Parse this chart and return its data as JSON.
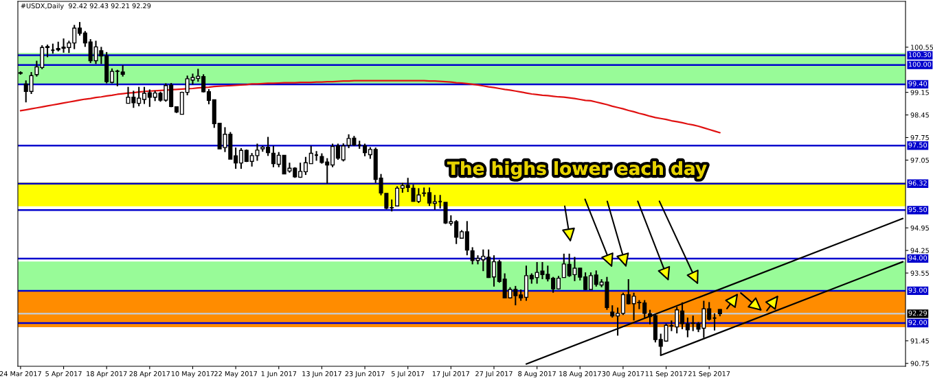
{
  "chart_data": {
    "type": "candlestick",
    "title": "#USDX,Daily  92.42 92.43 92.21 92.29",
    "color": "#000000",
    "categories": [
      "24 Mar 2017",
      null,
      null,
      null,
      null,
      null,
      null,
      null,
      "5 Apr 2017",
      null,
      null,
      null,
      null,
      null,
      null,
      null,
      "18 Apr 2017",
      null,
      null,
      null,
      null,
      null,
      null,
      null,
      "28 Apr 2017",
      null,
      null,
      null,
      null,
      null,
      null,
      null,
      "10 May 2017",
      null,
      null,
      null,
      null,
      null,
      null,
      null,
      "22 May 2017",
      null,
      null,
      null,
      null,
      null,
      null,
      null,
      "1 Jun 2017",
      null,
      null,
      null,
      null,
      null,
      null,
      null,
      "13 Jun 2017",
      null,
      null,
      null,
      null,
      null,
      null,
      null,
      "23 Jun 2017",
      null,
      null,
      null,
      null,
      null,
      null,
      null,
      "5 Jul 2017",
      null,
      null,
      null,
      null,
      null,
      null,
      null,
      "17 Jul 2017",
      null,
      null,
      null,
      null,
      null,
      null,
      null,
      "27 Jul 2017",
      null,
      null,
      null,
      null,
      null,
      null,
      null,
      "8 Aug 2017",
      null,
      null,
      null,
      null,
      null,
      null,
      null,
      "18 Aug 2017",
      null,
      null,
      null,
      null,
      null,
      null,
      null,
      "30 Aug 2017",
      null,
      null,
      null,
      null,
      null,
      null,
      null,
      "11 Sep 2017",
      null,
      null,
      null,
      null,
      null,
      null,
      null,
      "21 Sep 2017",
      null,
      null,
      null,
      null,
      null,
      null,
      null,
      null,
      null,
      null,
      null,
      null,
      null,
      null,
      null,
      null,
      null,
      null,
      null,
      null,
      null,
      null,
      null,
      null,
      null,
      null,
      null,
      null,
      null,
      null,
      null,
      null,
      null,
      null,
      null,
      null
    ],
    "ohlc": [
      [
        99.76,
        99.8,
        99.7,
        99.74
      ],
      [
        99.41,
        99.52,
        98.84,
        99.18
      ],
      [
        99.18,
        99.78,
        99.1,
        99.67
      ],
      [
        99.7,
        100.13,
        99.64,
        99.94
      ],
      [
        99.92,
        100.61,
        99.87,
        100.54
      ],
      [
        100.57,
        100.63,
        100.24,
        100.54
      ],
      [
        100.45,
        100.66,
        100.35,
        100.46
      ],
      [
        100.51,
        100.72,
        100.42,
        100.47
      ],
      [
        100.55,
        100.82,
        100.38,
        100.52
      ],
      [
        100.54,
        100.75,
        100.37,
        100.68
      ],
      [
        100.68,
        101.24,
        100.49,
        101.14
      ],
      [
        101.14,
        101.33,
        100.91,
        100.98
      ],
      [
        100.99,
        101.05,
        100.56,
        100.68
      ],
      [
        100.71,
        100.8,
        100.06,
        100.13
      ],
      [
        100.13,
        100.75,
        100.03,
        100.56
      ],
      [
        100.44,
        100.56,
        100.03,
        100.28
      ],
      [
        100.28,
        100.4,
        99.43,
        99.48
      ],
      [
        99.46,
        99.89,
        99.43,
        99.8
      ],
      [
        99.8,
        99.85,
        99.34,
        99.81
      ],
      [
        99.78,
        99.99,
        99.64,
        99.71
      ],
      [
        98.81,
        99.32,
        98.81,
        99.0
      ],
      [
        99.0,
        99.2,
        98.67,
        98.83
      ],
      [
        98.81,
        99.32,
        98.72,
        98.97
      ],
      [
        98.93,
        99.32,
        98.79,
        99.12
      ],
      [
        99.14,
        99.24,
        98.7,
        99.0
      ],
      [
        99.0,
        99.2,
        98.88,
        99.13
      ],
      [
        99.12,
        99.17,
        98.86,
        98.91
      ],
      [
        98.91,
        99.43,
        98.86,
        99.36
      ],
      [
        99.37,
        99.44,
        98.69,
        98.71
      ],
      [
        98.7,
        98.7,
        98.51,
        98.54
      ],
      [
        98.47,
        99.17,
        98.47,
        99.15
      ],
      [
        99.15,
        99.67,
        99.06,
        99.57
      ],
      [
        99.53,
        99.73,
        99.39,
        99.61
      ],
      [
        99.58,
        99.88,
        99.48,
        99.65
      ],
      [
        99.64,
        99.71,
        99.15,
        99.17
      ],
      [
        99.17,
        99.25,
        98.78,
        98.9
      ],
      [
        98.92,
        98.92,
        98.05,
        98.18
      ],
      [
        98.19,
        98.19,
        97.4,
        97.4
      ],
      [
        97.44,
        98.07,
        97.3,
        97.85
      ],
      [
        97.85,
        97.92,
        97.08,
        97.08
      ],
      [
        97.18,
        97.44,
        96.78,
        96.96
      ],
      [
        96.96,
        97.42,
        96.78,
        97.35
      ],
      [
        97.35,
        97.38,
        96.99,
        97.01
      ],
      [
        97.01,
        97.27,
        96.85,
        97.19
      ],
      [
        97.19,
        97.56,
        97.03,
        97.36
      ],
      [
        97.4,
        97.49,
        97.31,
        97.45
      ],
      [
        97.45,
        97.77,
        97.18,
        97.28
      ],
      [
        97.26,
        97.49,
        96.83,
        96.94
      ],
      [
        96.92,
        97.3,
        96.83,
        97.2
      ],
      [
        97.2,
        97.2,
        96.62,
        96.62
      ],
      [
        96.71,
        96.97,
        96.66,
        96.8
      ],
      [
        96.8,
        96.83,
        96.5,
        96.53
      ],
      [
        96.52,
        96.97,
        96.5,
        96.7
      ],
      [
        96.69,
        97.15,
        96.59,
        96.97
      ],
      [
        96.94,
        97.49,
        96.94,
        97.26
      ],
      [
        97.2,
        97.33,
        97.03,
        97.21
      ],
      [
        97.16,
        97.26,
        96.94,
        96.98
      ],
      [
        96.99,
        97.11,
        96.32,
        96.9
      ],
      [
        96.9,
        97.56,
        96.83,
        97.47
      ],
      [
        97.49,
        97.56,
        97.06,
        97.11
      ],
      [
        97.06,
        97.57,
        97.01,
        97.49
      ],
      [
        97.51,
        97.85,
        97.42,
        97.72
      ],
      [
        97.73,
        97.8,
        97.49,
        97.52
      ],
      [
        97.52,
        97.65,
        97.4,
        97.51
      ],
      [
        97.49,
        97.56,
        97.17,
        97.28
      ],
      [
        97.22,
        97.45,
        97.09,
        97.38
      ],
      [
        97.38,
        97.44,
        96.34,
        96.45
      ],
      [
        96.49,
        96.62,
        95.96,
        96.03
      ],
      [
        96.02,
        96.02,
        95.53,
        95.56
      ],
      [
        95.57,
        95.83,
        95.46,
        95.58
      ],
      [
        95.63,
        96.24,
        95.63,
        96.18
      ],
      [
        96.18,
        96.34,
        96.04,
        96.26
      ],
      [
        96.27,
        96.5,
        96.06,
        96.2
      ],
      [
        96.18,
        96.29,
        95.76,
        95.77
      ],
      [
        95.77,
        96.18,
        95.72,
        95.97
      ],
      [
        96.03,
        96.2,
        95.92,
        96.02
      ],
      [
        96.04,
        96.2,
        95.63,
        95.72
      ],
      [
        95.71,
        95.97,
        95.51,
        95.76
      ],
      [
        95.76,
        95.97,
        95.55,
        95.77
      ],
      [
        95.74,
        95.74,
        95.07,
        95.1
      ],
      [
        95.09,
        95.34,
        95.02,
        95.14
      ],
      [
        95.14,
        95.19,
        94.45,
        94.66
      ],
      [
        94.63,
        94.88,
        94.63,
        94.83
      ],
      [
        94.83,
        95.16,
        94.1,
        94.26
      ],
      [
        94.24,
        94.35,
        93.82,
        93.94
      ],
      [
        93.94,
        94.1,
        93.82,
        94.0
      ],
      [
        93.96,
        94.28,
        93.61,
        94.07
      ],
      [
        94.04,
        94.28,
        93.4,
        93.41
      ],
      [
        93.43,
        94.1,
        93.13,
        93.9
      ],
      [
        93.9,
        93.96,
        93.25,
        93.29
      ],
      [
        93.36,
        93.54,
        92.78,
        92.78
      ],
      [
        92.78,
        93.11,
        92.76,
        93.04
      ],
      [
        93.04,
        93.15,
        92.55,
        92.85
      ],
      [
        92.87,
        93.04,
        92.69,
        92.78
      ],
      [
        92.8,
        93.78,
        92.69,
        93.47
      ],
      [
        93.48,
        93.54,
        93.22,
        93.37
      ],
      [
        93.41,
        93.89,
        93.22,
        93.57
      ],
      [
        93.61,
        93.89,
        93.36,
        93.5
      ],
      [
        93.51,
        93.78,
        93.29,
        93.37
      ],
      [
        93.39,
        93.43,
        92.94,
        93.06
      ],
      [
        93.06,
        93.46,
        93.04,
        93.39
      ],
      [
        93.41,
        94.15,
        93.41,
        93.83
      ],
      [
        93.82,
        94.15,
        93.43,
        93.47
      ],
      [
        93.5,
        94.05,
        93.3,
        93.7
      ],
      [
        93.7,
        93.71,
        93.32,
        93.42
      ],
      [
        93.43,
        93.57,
        93.02,
        93.04
      ],
      [
        93.04,
        93.57,
        93.04,
        93.47
      ],
      [
        93.49,
        93.63,
        93.13,
        93.2
      ],
      [
        93.18,
        93.36,
        93.11,
        93.27
      ],
      [
        93.27,
        93.43,
        92.41,
        92.48
      ],
      [
        92.34,
        92.55,
        92.17,
        92.22
      ],
      [
        92.22,
        92.48,
        91.61,
        92.3
      ],
      [
        92.3,
        92.94,
        92.25,
        92.88
      ],
      [
        92.88,
        93.36,
        92.58,
        92.6
      ],
      [
        92.6,
        92.94,
        92.08,
        92.83
      ],
      [
        92.63,
        92.71,
        92.43,
        92.64
      ],
      [
        92.62,
        92.71,
        92.17,
        92.3
      ],
      [
        92.29,
        92.41,
        91.96,
        92.2
      ],
      [
        92.23,
        92.27,
        91.4,
        91.49
      ],
      [
        91.49,
        91.67,
        91.0,
        91.28
      ],
      [
        91.44,
        91.98,
        91.42,
        91.93
      ],
      [
        91.91,
        92.08,
        91.75,
        91.92
      ],
      [
        91.88,
        92.5,
        91.68,
        92.41
      ],
      [
        92.37,
        92.64,
        91.81,
        91.98
      ],
      [
        91.98,
        92.17,
        91.56,
        91.79
      ],
      [
        91.99,
        92.23,
        91.75,
        92.0
      ],
      [
        91.98,
        92.03,
        91.72,
        91.81
      ],
      [
        91.84,
        92.69,
        91.54,
        92.44
      ],
      [
        92.44,
        92.65,
        92.08,
        92.12
      ],
      [
        92.15,
        92.3,
        91.77,
        92.16
      ],
      [
        92.42,
        92.43,
        92.21,
        92.29
      ],
      null,
      null,
      null,
      null,
      null,
      null,
      null,
      null,
      null,
      null,
      null,
      null,
      null,
      null,
      null,
      null,
      null,
      null,
      null,
      null,
      null,
      null,
      null,
      null,
      null,
      null,
      null,
      null,
      null,
      null,
      null,
      null,
      null,
      null
    ],
    "series": [
      {
        "type": "line",
        "color": "#e01010",
        "values": [
          98.58,
          98.61,
          98.64,
          98.67,
          98.7,
          98.73,
          98.76,
          98.79,
          98.82,
          98.85,
          98.88,
          98.91,
          98.94,
          98.96,
          98.99,
          99.01,
          99.04,
          99.06,
          99.09,
          99.11,
          99.13,
          99.14,
          99.16,
          99.18,
          99.19,
          99.2,
          99.21,
          99.22,
          99.23,
          99.24,
          99.25,
          99.26,
          99.27,
          99.29,
          99.3,
          99.31,
          99.33,
          99.34,
          99.35,
          99.36,
          99.37,
          99.38,
          99.39,
          99.41,
          99.41,
          99.42,
          99.43,
          99.43,
          99.44,
          99.45,
          99.45,
          99.45,
          99.46,
          99.46,
          99.46,
          99.47,
          99.47,
          99.48,
          99.48,
          99.49,
          99.5,
          99.5,
          99.51,
          99.51,
          99.51,
          99.51,
          99.51,
          99.51,
          99.51,
          99.51,
          99.51,
          99.51,
          99.51,
          99.51,
          99.51,
          99.51,
          99.5,
          99.5,
          99.49,
          99.48,
          99.47,
          99.45,
          99.44,
          99.42,
          99.4,
          99.38,
          99.35,
          99.32,
          99.3,
          99.27,
          99.24,
          99.22,
          99.19,
          99.16,
          99.13,
          99.1,
          99.08,
          99.06,
          99.05,
          99.03,
          99.01,
          99.0,
          98.98,
          98.96,
          98.93,
          98.9,
          98.89,
          98.85,
          98.81,
          98.77,
          98.72,
          98.68,
          98.64,
          98.59,
          98.55,
          98.5,
          98.46,
          98.41,
          98.37,
          98.34,
          98.31,
          98.27,
          98.24,
          98.21,
          98.17,
          98.14,
          98.1,
          98.05,
          98.0,
          97.95,
          97.9,
          null,
          null,
          null,
          null,
          null,
          null,
          null,
          null,
          null,
          null,
          null,
          null,
          null,
          null,
          null,
          null,
          null,
          null,
          null,
          null,
          null,
          null,
          null,
          null,
          null,
          null,
          null,
          null,
          null,
          null,
          null,
          null,
          null,
          null
        ]
      },
      {
        "type": "line",
        "color": "#000000",
        "values": [
          null,
          null,
          null,
          null,
          null,
          null,
          null,
          null,
          null,
          null,
          null,
          null,
          null,
          null,
          null,
          null,
          null,
          null,
          null,
          null,
          null,
          null,
          null,
          null,
          null,
          null,
          null,
          null,
          null,
          null,
          null,
          null,
          null,
          null,
          null,
          null,
          null,
          null,
          null,
          null,
          null,
          null,
          null,
          null,
          null,
          null,
          null,
          null,
          null,
          null,
          null,
          null,
          null,
          null,
          null,
          null,
          null,
          null,
          null,
          null,
          null,
          null,
          null,
          null,
          null,
          null,
          null,
          null,
          null,
          null,
          null,
          null,
          null,
          null,
          null,
          null,
          null,
          null,
          null,
          null,
          null,
          null,
          null,
          null,
          null,
          null,
          null,
          null,
          null,
          null,
          null,
          null,
          null,
          null,
          90.73,
          null,
          null,
          null,
          null,
          null,
          null,
          null,
          null,
          null,
          null,
          null,
          null,
          null,
          null,
          null,
          null,
          null,
          null,
          null,
          null,
          null,
          null,
          null,
          null,
          null,
          null,
          null,
          null,
          null,
          null,
          null,
          null,
          null,
          null,
          null,
          null,
          null,
          null,
          null,
          null,
          null,
          null,
          null,
          null,
          null,
          null,
          null,
          null,
          null,
          null,
          null,
          null,
          null,
          null,
          null,
          null,
          null,
          null,
          null,
          null,
          null,
          null,
          null,
          null,
          null,
          null,
          null,
          null,
          null,
          95.24
        ]
      },
      {
        "type": "line",
        "color": "#000000",
        "values": [
          null,
          null,
          null,
          null,
          null,
          null,
          null,
          null,
          null,
          null,
          null,
          null,
          null,
          null,
          null,
          null,
          null,
          null,
          null,
          null,
          null,
          null,
          null,
          null,
          null,
          null,
          null,
          null,
          null,
          null,
          null,
          null,
          null,
          null,
          null,
          null,
          null,
          null,
          null,
          null,
          null,
          null,
          null,
          null,
          null,
          null,
          null,
          null,
          null,
          null,
          null,
          null,
          null,
          null,
          null,
          null,
          null,
          null,
          null,
          null,
          null,
          null,
          null,
          null,
          null,
          null,
          null,
          null,
          null,
          null,
          null,
          null,
          null,
          null,
          null,
          null,
          null,
          null,
          null,
          null,
          null,
          null,
          null,
          null,
          null,
          null,
          null,
          null,
          null,
          null,
          null,
          null,
          null,
          null,
          null,
          null,
          null,
          null,
          null,
          null,
          null,
          null,
          null,
          null,
          null,
          null,
          null,
          null,
          null,
          null,
          null,
          null,
          null,
          null,
          null,
          null,
          null,
          null,
          null,
          91.0,
          null,
          null,
          null,
          null,
          null,
          null,
          null,
          null,
          null,
          null,
          null,
          null,
          null,
          null,
          null,
          null,
          null,
          null,
          null,
          null,
          null,
          null,
          null,
          null,
          null,
          null,
          null,
          null,
          null,
          null,
          null,
          null,
          null,
          null,
          null,
          null,
          null,
          null,
          null,
          null,
          null,
          null,
          null,
          null,
          93.9
        ]
      }
    ],
    "ylim": [
      90.66,
      101.97
    ],
    "yticks": [
      100.55,
      99.15,
      98.45,
      97.75,
      97.05,
      94.95,
      94.25,
      93.55,
      91.45,
      90.75
    ],
    "bands": [
      {
        "axis": "y",
        "from": 99.4,
        "to": 100.37,
        "color": "#98fb98"
      },
      {
        "axis": "y",
        "from": 95.62,
        "to": 96.36,
        "color": "#ffff00"
      },
      {
        "axis": "y",
        "from": 93.0,
        "to": 93.91,
        "color": "#98fb98"
      },
      {
        "axis": "y",
        "from": 91.87,
        "to": 93.0,
        "color": "#ff8c00"
      }
    ],
    "ref_lines": [
      {
        "axis": "y",
        "value": 100.3,
        "label": "100.30",
        "color": "#0000cd"
      },
      {
        "axis": "y",
        "value": 100.0,
        "label": "100.00",
        "color": "#0000cd"
      },
      {
        "axis": "y",
        "value": 99.4,
        "label": "99.40",
        "color": "#0000cd"
      },
      {
        "axis": "y",
        "value": 97.5,
        "label": "97.50",
        "color": "#0000cd"
      },
      {
        "axis": "y",
        "value": 96.32,
        "label": "96.32",
        "color": "#0000cd"
      },
      {
        "axis": "y",
        "value": 95.5,
        "label": "95.50",
        "color": "#0000cd"
      },
      {
        "axis": "y",
        "value": 94.0,
        "label": "94.00",
        "color": "#0000cd"
      },
      {
        "axis": "y",
        "value": 93.0,
        "label": "93.00",
        "color": "#0000cd"
      },
      {
        "axis": "y",
        "value": 92.29,
        "label": "92.29",
        "color": "#c8c8c8"
      },
      {
        "axis": "y",
        "value": 92.0,
        "label": "92.00",
        "color": "#0000cd"
      }
    ],
    "annotations": [
      "The highs lower each day"
    ]
  }
}
